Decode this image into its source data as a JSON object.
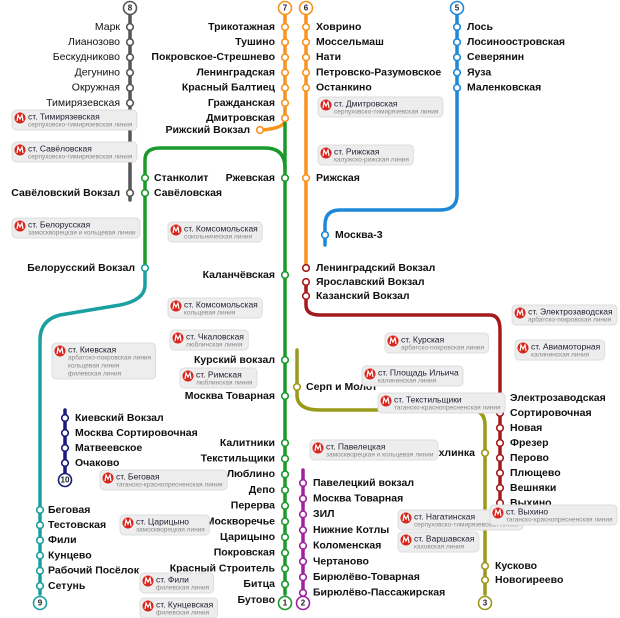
{
  "station_groups": [
    [
      "Марк",
      "Лианозово",
      "Бескудниково",
      "Дегунино",
      "Окружная",
      "Тимирязевская"
    ],
    [
      "Трикотажная",
      "Тушино",
      "Покровское-Стрешнево",
      "Ленинградская",
      "Красный Балтиец",
      "Гражданская",
      "Дмитровская"
    ],
    [
      "Ховрино",
      "Моссельмаш",
      "Нати",
      "Петровско-Разумовское",
      "Останкино"
    ],
    [
      "Лось",
      "Лосиноостровская",
      "Северянин",
      "Яуза",
      "Маленковская"
    ],
    [
      "Рижский Вокзал"
    ],
    [
      "Ржевская"
    ],
    [
      "Рижская"
    ],
    [
      "Москва-3"
    ],
    [
      "Станколит",
      "Савёловская"
    ],
    [
      "Савёловский Вокзал"
    ],
    [
      "Белорусский Вокзал"
    ],
    [
      "Каланчёвская"
    ],
    [
      "Ленинградский Вокзал",
      "Ярославский Вокзал",
      "Казанский Вокзал"
    ],
    [
      "Курский вокзал"
    ],
    [
      "Москва Товарная"
    ],
    [
      "Серп и Молот"
    ],
    [
      "Калитники",
      "Текстильщики",
      "Люблино",
      "Депо",
      "Перерва",
      "Москворечье",
      "Царицыно",
      "Покровская",
      "Красный Строитель",
      "Битца",
      "Бутово"
    ],
    [
      "Павелецкий вокзал",
      "Москва Товарная",
      "ЗИЛ",
      "Нижние Котлы",
      "Коломенская",
      "Чертаново",
      "Бирюлёво-Товарная",
      "Бирюлёво-Пассажирская"
    ],
    [
      "Чухлинка"
    ],
    [
      "Кусково",
      "Новогиреево"
    ],
    [
      "Электрозаводская",
      "Сортировочная",
      "Новая",
      "Фрезер",
      "Перово",
      "Плющево",
      "Вешняки",
      "Выхино"
    ],
    [
      "Киевский Вокзал",
      "Москва Сортировочная",
      "Матвеевское",
      "Очаково"
    ],
    [
      "Беговая",
      "Тестовская",
      "Фили",
      "Кунцево",
      "Рабочий Посёлок",
      "Сетунь"
    ]
  ],
  "line_numbers": [
    "8",
    "7",
    "6",
    "5",
    "1",
    "2",
    "3",
    "4",
    "10",
    "9"
  ],
  "callouts": [
    {
      "name": "ст. Тимирязевская",
      "lines": [
        "серпуховско-тимирязевская линия"
      ]
    },
    {
      "name": "ст. Савёловская",
      "lines": [
        "серпуховско-тимирязевская линия"
      ]
    },
    {
      "name": "ст. Белорусская",
      "lines": [
        "замоскворецкая и кольцевая линии"
      ]
    },
    {
      "name": "ст. Дмитровская",
      "lines": [
        "серпуховско-тимирязевская линия"
      ]
    },
    {
      "name": "ст. Рижская",
      "lines": [
        "калужско-рижская линия"
      ]
    },
    {
      "name": "ст. Комсомольская",
      "lines": [
        "сокольническая линия"
      ]
    },
    {
      "name": "ст. Комсомольская",
      "lines": [
        "кольцевая линия"
      ]
    },
    {
      "name": "ст. Чкаловская",
      "lines": [
        "люблинская линия"
      ]
    },
    {
      "name": "ст. Римская",
      "lines": [
        "люблинская линия"
      ]
    },
    {
      "name": "ст. Курская",
      "lines": [
        "арбатско-покровская линия"
      ]
    },
    {
      "name": "ст. Площадь Ильича",
      "lines": [
        "калининская линия"
      ]
    },
    {
      "name": "ст. Текстильщики",
      "lines": [
        "таганско-краснопресненская линия"
      ]
    },
    {
      "name": "ст. Электрозаводская",
      "lines": [
        "арбатско-покровская линия"
      ]
    },
    {
      "name": "ст. Авиамоторная",
      "lines": [
        "калининская линия"
      ]
    },
    {
      "name": "ст. Киевская",
      "lines": [
        "арбатско-покровская линия",
        "кольцевая линия",
        "филевская линия"
      ]
    },
    {
      "name": "ст. Павелецкая",
      "lines": [
        "замоскворецкая и кольцевая линии"
      ]
    },
    {
      "name": "ст. Беговая",
      "lines": [
        "таганско-краснопресненская линия"
      ]
    },
    {
      "name": "ст. Нагатинская",
      "lines": [
        "серпуховско-тимирязевская линия"
      ]
    },
    {
      "name": "ст. Варшавская",
      "lines": [
        "каховская линия"
      ]
    },
    {
      "name": "ст. Царицыно",
      "lines": [
        "замоскворецкая линия"
      ]
    },
    {
      "name": "ст. Выхино",
      "lines": [
        "таганско-краснопресненская линия"
      ]
    },
    {
      "name": "ст. Фили",
      "lines": [
        "филевская линия"
      ]
    },
    {
      "name": "ст. Кунцевская",
      "lines": [
        "филевская линия"
      ]
    }
  ]
}
